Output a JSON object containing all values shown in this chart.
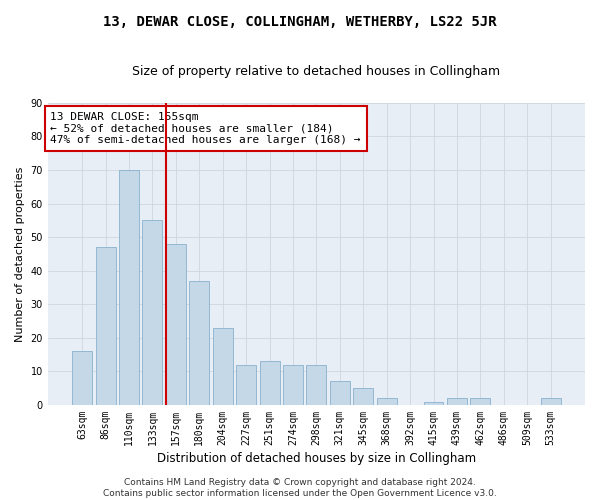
{
  "title": "13, DEWAR CLOSE, COLLINGHAM, WETHERBY, LS22 5JR",
  "subtitle": "Size of property relative to detached houses in Collingham",
  "xlabel": "Distribution of detached houses by size in Collingham",
  "ylabel": "Number of detached properties",
  "categories": [
    "63sqm",
    "86sqm",
    "110sqm",
    "133sqm",
    "157sqm",
    "180sqm",
    "204sqm",
    "227sqm",
    "251sqm",
    "274sqm",
    "298sqm",
    "321sqm",
    "345sqm",
    "368sqm",
    "392sqm",
    "415sqm",
    "439sqm",
    "462sqm",
    "486sqm",
    "509sqm",
    "533sqm"
  ],
  "values": [
    16,
    47,
    70,
    55,
    48,
    37,
    23,
    12,
    13,
    12,
    12,
    7,
    5,
    2,
    0,
    1,
    2,
    2,
    0,
    0,
    2
  ],
  "bar_color": "#c5d8e8",
  "bar_edge_color": "#7aa8c8",
  "vline_color": "#cc0000",
  "annotation_text": "13 DEWAR CLOSE: 155sqm\n← 52% of detached houses are smaller (184)\n47% of semi-detached houses are larger (168) →",
  "annotation_box_color": "#ffffff",
  "annotation_box_edge": "#cc0000",
  "ylim": [
    0,
    90
  ],
  "yticks": [
    0,
    10,
    20,
    30,
    40,
    50,
    60,
    70,
    80,
    90
  ],
  "grid_color": "#cdd5e0",
  "bg_color": "#e8eef5",
  "footer": "Contains HM Land Registry data © Crown copyright and database right 2024.\nContains public sector information licensed under the Open Government Licence v3.0.",
  "title_fontsize": 10,
  "subtitle_fontsize": 9,
  "xlabel_fontsize": 8.5,
  "ylabel_fontsize": 8,
  "tick_fontsize": 7,
  "annotation_fontsize": 8,
  "footer_fontsize": 6.5
}
